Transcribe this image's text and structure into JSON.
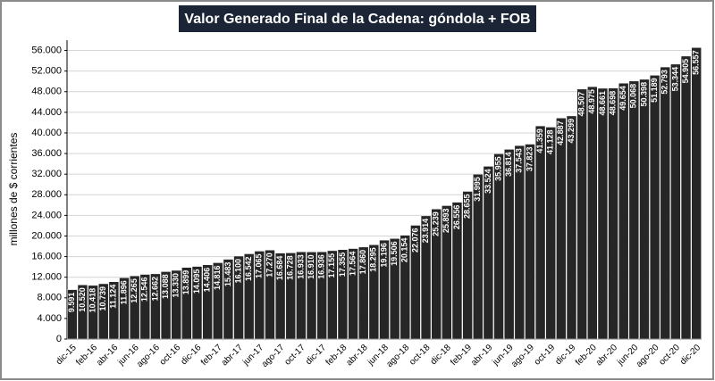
{
  "chart_data": {
    "type": "bar",
    "title": "Valor Generado Final de la Cadena: góndola + FOB",
    "y_label": "millones de $ corrientes",
    "categories": [
      "dic-15",
      null,
      "feb-16",
      null,
      "abr-16",
      null,
      "jun-16",
      null,
      "ago-16",
      null,
      "oct-16",
      null,
      "dic-16",
      null,
      "feb-17",
      null,
      "abr-17",
      null,
      "jun-17",
      null,
      "ago-17",
      null,
      "oct-17",
      null,
      "dic-17",
      null,
      "feb-18",
      null,
      "abr-18",
      null,
      "jun-18",
      null,
      "ago-18",
      null,
      "oct-18",
      null,
      "dic-18",
      null,
      "feb-19",
      null,
      "abr-19",
      null,
      "jun-19",
      null,
      "ago-19",
      null,
      "oct-19",
      null,
      "dic-19",
      null,
      "feb-20",
      null,
      "abr-20",
      null,
      "jun-20",
      null,
      "ago-20",
      null,
      "oct-20",
      null,
      "dic-20"
    ],
    "values": [
      9591,
      10520,
      10418,
      10739,
      11124,
      11896,
      12265,
      12546,
      12662,
      13088,
      13330,
      13899,
      14095,
      14406,
      14816,
      15483,
      16100,
      16542,
      17065,
      17270,
      16684,
      16728,
      16933,
      16910,
      16936,
      17155,
      17355,
      17564,
      17860,
      18295,
      19196,
      19506,
      20154,
      22076,
      23914,
      25239,
      25893,
      26556,
      28655,
      31995,
      33524,
      35955,
      36814,
      37543,
      37823,
      41359,
      41128,
      42887,
      43299,
      48507,
      48975,
      48661,
      48698,
      49654,
      50068,
      50398,
      51189,
      52793,
      53344,
      54905,
      56557
    ],
    "value_labels": [
      "9.591",
      "10.520",
      "10.418",
      "10.739",
      "11.124",
      "11.896",
      "12.265",
      "12.546",
      "12.662",
      "13.088",
      "13.330",
      "13.899",
      "14.095",
      "14.406",
      "14.816",
      "15.483",
      "16.100",
      "16.542",
      "17.065",
      "17.270",
      "16.684",
      "16.728",
      "16.933",
      "16.910",
      "16.936",
      "17.155",
      "17.355",
      "17.564",
      "17.860",
      "18.295",
      "19.196",
      "19.506",
      "20.154",
      "22.076",
      "23.914",
      "25.239",
      "25.893",
      "26.556",
      "28.655",
      "31.995",
      "33.524",
      "35.955",
      "36.814",
      "37.543",
      "37.823",
      "41.359",
      "41.128",
      "42.887",
      "43.299",
      "48.507",
      "48.975",
      "48.661",
      "48.698",
      "49.654",
      "50.068",
      "50.398",
      "51.189",
      "52.793",
      "53.344",
      "54.905",
      "56.557"
    ],
    "color": "#262626",
    "ylim": [
      0,
      58000
    ],
    "yticks": [
      0,
      {
        "value": 4000,
        "label": "4.000"
      },
      {
        "value": 8000,
        "label": "8.000"
      },
      {
        "value": 12000,
        "label": "12.000"
      },
      {
        "value": 16000,
        "label": "16.000"
      },
      {
        "value": 20000,
        "label": "20.000"
      },
      {
        "value": 24000,
        "label": "24.000"
      },
      {
        "value": 28000,
        "label": "28.000"
      },
      {
        "value": 32000,
        "label": "32.000"
      },
      {
        "value": 36000,
        "label": "36.000"
      },
      {
        "value": 40000,
        "label": "40.000"
      },
      {
        "value": 44000,
        "label": "44.000"
      },
      {
        "value": 48000,
        "label": "48.000"
      },
      {
        "value": 52000,
        "label": "52.000"
      },
      {
        "value": 56000,
        "label": "56.000"
      }
    ],
    "grid": true
  }
}
